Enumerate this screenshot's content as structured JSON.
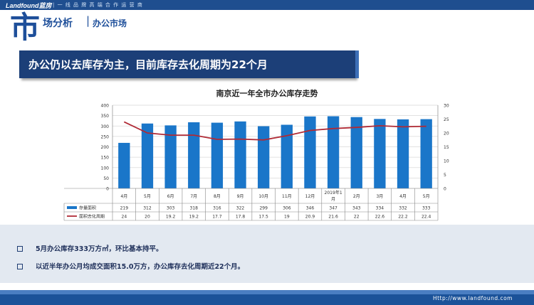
{
  "header": {
    "brand": "Landfound蓝房",
    "slogan": "| 一 线 品 牌 高 端 合 作 运 营 商"
  },
  "section": {
    "big_char": "市",
    "title": "场分析",
    "separator": "|",
    "subtitle": "办公市场"
  },
  "headline": "办公仍以去库存为主，目前库存去化周期为22个月",
  "chart_data": {
    "type": "bar",
    "title": "南京近一年全市办公库存走势",
    "categories": [
      "4月",
      "5月",
      "6月",
      "7月",
      "8月",
      "9月",
      "10月",
      "11月",
      "12月",
      "2019年1月",
      "2月",
      "3月",
      "4月",
      "5月"
    ],
    "category_lines": [
      [
        "4月"
      ],
      [
        "5月"
      ],
      [
        "6月"
      ],
      [
        "7月"
      ],
      [
        "8月"
      ],
      [
        "9月"
      ],
      [
        "10月"
      ],
      [
        "11月"
      ],
      [
        "12月"
      ],
      [
        "2019年1",
        "月"
      ],
      [
        "2月"
      ],
      [
        "3月"
      ],
      [
        "4月"
      ],
      [
        "5月"
      ]
    ],
    "series": [
      {
        "name": "存量面积",
        "type": "bar",
        "axis": "left",
        "color": "#1a76c9",
        "values": [
          219,
          312,
          303,
          318,
          316,
          322,
          299,
          306,
          346,
          347,
          343,
          334,
          332,
          333
        ],
        "labels": [
          "219",
          "312",
          "303",
          "318",
          "316",
          "322",
          "299",
          "306",
          "346",
          "347",
          "343",
          "334",
          "332",
          "333"
        ]
      },
      {
        "name": "面积去化周期",
        "type": "line",
        "axis": "right",
        "color": "#b02a35",
        "values": [
          24,
          20,
          19.2,
          19.2,
          17.7,
          17.8,
          17.5,
          19,
          20.9,
          21.6,
          22,
          22.6,
          22.2,
          22.4
        ],
        "labels": [
          "24",
          "20",
          "19.2",
          "19.2",
          "17.7",
          "17.8",
          "17.5",
          "19",
          "20.9",
          "21.6",
          "22",
          "22.6",
          "22.2",
          "22.4"
        ]
      }
    ],
    "y_left": {
      "min": 0,
      "max": 400,
      "ticks": [
        "0",
        "50",
        "100",
        "150",
        "200",
        "250",
        "300",
        "350",
        "400"
      ]
    },
    "y_right": {
      "min": 0,
      "max": 30,
      "ticks": [
        "0",
        "5",
        "10",
        "15",
        "20",
        "25",
        "30"
      ]
    },
    "grid": true,
    "legend": "data-table"
  },
  "notes": [
    "5月办公库存333万方㎡，环比基本持平。",
    "以近半年办公月均成交面积15.0万方，办公库存去化周期近22个月。"
  ],
  "footer": {
    "url": "Http://www.landfound.com"
  }
}
